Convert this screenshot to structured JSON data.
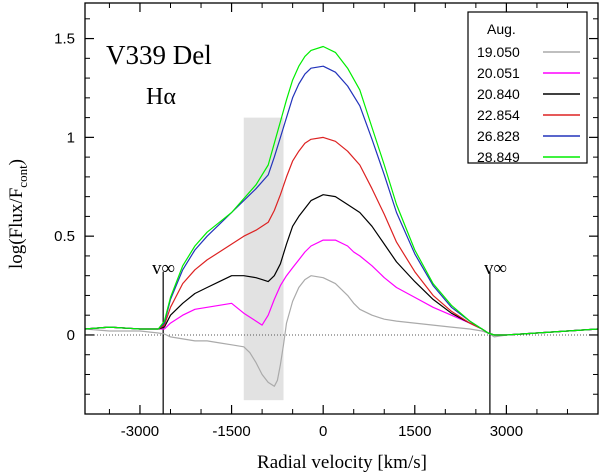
{
  "chart_data": {
    "type": "line",
    "title": "V339 Del",
    "subtitle": "Hα",
    "xlabel": "Radial velocity [km/s]",
    "ylabel_main": "log(Flux/F",
    "ylabel_sub": "cont",
    "ylabel_close": ")",
    "xlim": [
      -3900,
      4500
    ],
    "ylim": [
      -0.4,
      1.68
    ],
    "x_ticks": [
      -3000,
      -1500,
      0,
      1500,
      3000
    ],
    "x_tick_labels": [
      "-3000",
      "-1500",
      "0",
      "1500",
      "3000"
    ],
    "y_ticks": [
      0,
      0.5,
      1,
      1.5
    ],
    "y_tick_labels": [
      "0",
      "0.5",
      "1",
      "1.5"
    ],
    "grid": false,
    "baseline": 0,
    "shaded_region": {
      "x": [
        -1300,
        -650
      ],
      "y": [
        -0.33,
        1.1
      ]
    },
    "v_inf_label": "v∞",
    "v_inf_lines": [
      {
        "x": -2620,
        "y": [
          -0.4,
          0.32
        ]
      },
      {
        "x": 2730,
        "y": [
          -0.4,
          0.32
        ]
      }
    ],
    "legend": {
      "title": "Aug.",
      "position": "top-right"
    },
    "series": [
      {
        "name": "19.050",
        "color": "#aaaaaa",
        "x": [
          -3900,
          -3500,
          -3000,
          -2700,
          -2600,
          -2500,
          -2300,
          -2100,
          -1900,
          -1700,
          -1500,
          -1300,
          -1200,
          -1100,
          -1000,
          -900,
          -800,
          -750,
          -700,
          -650,
          -600,
          -500,
          -400,
          -300,
          -200,
          0,
          200,
          400,
          500,
          600,
          800,
          1000,
          1200,
          1500,
          1800,
          2100,
          2400,
          2600,
          2700,
          2800,
          3000,
          3500,
          4000,
          4500
        ],
        "y": [
          0.03,
          0.02,
          0.02,
          0.01,
          0.005,
          -0.01,
          -0.02,
          -0.03,
          -0.03,
          -0.04,
          -0.05,
          -0.06,
          -0.09,
          -0.14,
          -0.2,
          -0.24,
          -0.26,
          -0.23,
          -0.15,
          -0.05,
          0.06,
          0.17,
          0.24,
          0.28,
          0.3,
          0.29,
          0.26,
          0.2,
          0.16,
          0.13,
          0.1,
          0.08,
          0.07,
          0.06,
          0.05,
          0.04,
          0.03,
          0.02,
          0.01,
          -0.01,
          0,
          0.01,
          0.02,
          0.03
        ]
      },
      {
        "name": "20.051",
        "color": "#ff00ff",
        "x": [
          -3900,
          -3500,
          -3000,
          -2700,
          -2600,
          -2500,
          -2300,
          -2100,
          -1900,
          -1700,
          -1500,
          -1300,
          -1100,
          -1000,
          -900,
          -800,
          -700,
          -600,
          -500,
          -400,
          -300,
          -200,
          0,
          200,
          400,
          500,
          600,
          800,
          1000,
          1200,
          1500,
          1800,
          2100,
          2400,
          2600,
          2700,
          2800,
          3000,
          3500,
          4000,
          4500
        ],
        "y": [
          0.03,
          0.04,
          0.03,
          0.03,
          0.03,
          0.06,
          0.1,
          0.13,
          0.14,
          0.15,
          0.16,
          0.11,
          0.07,
          0.05,
          0.1,
          0.18,
          0.25,
          0.3,
          0.34,
          0.38,
          0.42,
          0.45,
          0.48,
          0.48,
          0.45,
          0.42,
          0.4,
          0.35,
          0.29,
          0.24,
          0.19,
          0.14,
          0.1,
          0.06,
          0.03,
          0.01,
          0,
          0,
          0.01,
          0.02,
          0.03
        ]
      },
      {
        "name": "20.840",
        "color": "#000000",
        "x": [
          -3900,
          -3500,
          -3000,
          -2700,
          -2600,
          -2500,
          -2300,
          -2100,
          -1900,
          -1700,
          -1500,
          -1300,
          -1100,
          -1000,
          -900,
          -800,
          -700,
          -600,
          -500,
          -400,
          -300,
          -200,
          0,
          200,
          400,
          600,
          800,
          1000,
          1200,
          1500,
          1800,
          2100,
          2400,
          2600,
          2700,
          2800,
          3000,
          3500,
          4000,
          4500
        ],
        "y": [
          0.03,
          0.04,
          0.03,
          0.03,
          0.04,
          0.1,
          0.16,
          0.21,
          0.24,
          0.27,
          0.3,
          0.3,
          0.29,
          0.28,
          0.27,
          0.3,
          0.36,
          0.46,
          0.55,
          0.6,
          0.64,
          0.68,
          0.71,
          0.7,
          0.66,
          0.62,
          0.55,
          0.46,
          0.37,
          0.27,
          0.18,
          0.11,
          0.06,
          0.03,
          0.01,
          0,
          0,
          0.01,
          0.02,
          0.03
        ]
      },
      {
        "name": "22.854",
        "color": "#dd2222",
        "x": [
          -3900,
          -3500,
          -3000,
          -2700,
          -2600,
          -2500,
          -2300,
          -2100,
          -1900,
          -1700,
          -1500,
          -1300,
          -1100,
          -900,
          -800,
          -700,
          -600,
          -500,
          -400,
          -300,
          -200,
          0,
          200,
          400,
          600,
          800,
          1000,
          1200,
          1500,
          1800,
          2100,
          2400,
          2600,
          2700,
          2800,
          3000,
          3500,
          4000,
          4500
        ],
        "y": [
          0.03,
          0.04,
          0.03,
          0.03,
          0.05,
          0.14,
          0.26,
          0.33,
          0.38,
          0.42,
          0.46,
          0.5,
          0.53,
          0.57,
          0.63,
          0.71,
          0.8,
          0.88,
          0.93,
          0.97,
          0.99,
          1.0,
          0.98,
          0.93,
          0.86,
          0.74,
          0.61,
          0.47,
          0.32,
          0.2,
          0.12,
          0.06,
          0.03,
          0.01,
          0,
          0,
          0.01,
          0.02,
          0.03
        ]
      },
      {
        "name": "26.828",
        "color": "#2233bb",
        "x": [
          -3900,
          -3500,
          -3000,
          -2700,
          -2600,
          -2500,
          -2300,
          -2100,
          -1900,
          -1700,
          -1500,
          -1300,
          -1100,
          -900,
          -800,
          -700,
          -600,
          -500,
          -400,
          -300,
          -200,
          0,
          200,
          400,
          600,
          800,
          1000,
          1200,
          1500,
          1800,
          2100,
          2400,
          2600,
          2700,
          2800,
          3000,
          3500,
          4000,
          4500
        ],
        "y": [
          0.03,
          0.04,
          0.03,
          0.03,
          0.06,
          0.18,
          0.33,
          0.43,
          0.5,
          0.56,
          0.62,
          0.68,
          0.74,
          0.81,
          0.9,
          1.0,
          1.1,
          1.2,
          1.27,
          1.32,
          1.35,
          1.36,
          1.33,
          1.26,
          1.16,
          0.99,
          0.81,
          0.62,
          0.41,
          0.25,
          0.14,
          0.07,
          0.03,
          0.01,
          0,
          0,
          0.01,
          0.02,
          0.03
        ]
      },
      {
        "name": "28.849",
        "color": "#00ee00",
        "x": [
          -3900,
          -3500,
          -3000,
          -2700,
          -2600,
          -2500,
          -2300,
          -2100,
          -1900,
          -1700,
          -1500,
          -1300,
          -1100,
          -900,
          -800,
          -700,
          -600,
          -500,
          -400,
          -300,
          -200,
          0,
          200,
          400,
          600,
          800,
          1000,
          1200,
          1500,
          1800,
          2100,
          2400,
          2600,
          2700,
          2800,
          3000,
          3500,
          4000,
          4500
        ],
        "y": [
          0.03,
          0.04,
          0.03,
          0.03,
          0.07,
          0.19,
          0.35,
          0.45,
          0.52,
          0.57,
          0.62,
          0.69,
          0.76,
          0.86,
          0.97,
          1.08,
          1.19,
          1.29,
          1.36,
          1.41,
          1.44,
          1.46,
          1.43,
          1.35,
          1.24,
          1.05,
          0.86,
          0.66,
          0.43,
          0.26,
          0.15,
          0.07,
          0.03,
          0.01,
          0,
          0,
          0.01,
          0.02,
          0.03
        ]
      }
    ]
  }
}
